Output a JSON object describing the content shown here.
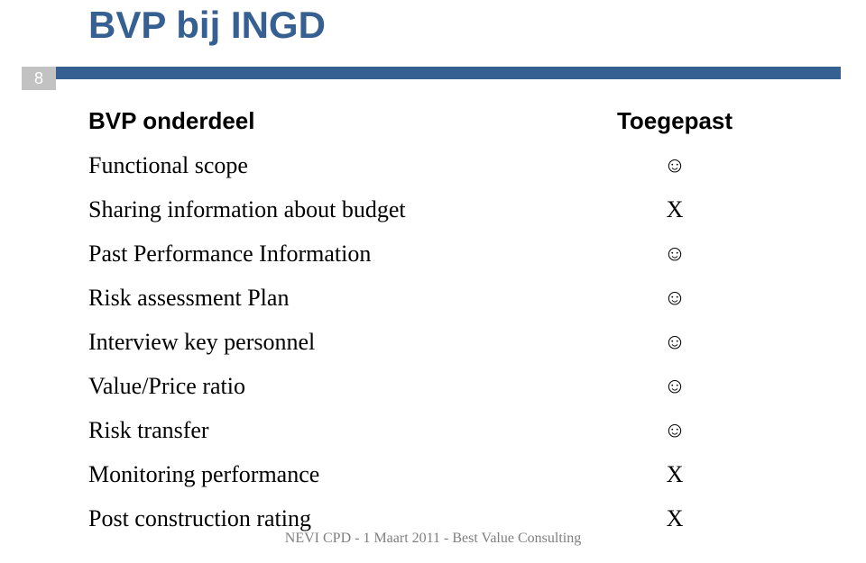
{
  "title": "BVP bij INGD",
  "page_number": "8",
  "colors": {
    "title": "#376092",
    "divider": "#376092",
    "pagebox_bg": "#c2c2c2",
    "pagebox_fg": "#ffffff",
    "text": "#000000",
    "footer": "#7f7f7f",
    "background": "#ffffff"
  },
  "table": {
    "header_left": "BVP onderdeel",
    "header_right": "Toegepast",
    "rows": [
      {
        "label": "Functional scope",
        "value": "☺"
      },
      {
        "label": "Sharing information about budget",
        "value": "X"
      },
      {
        "label": "Past Performance Information",
        "value": "☺"
      },
      {
        "label": "Risk assessment Plan",
        "value": "☺"
      },
      {
        "label": "Interview key personnel",
        "value": "☺"
      },
      {
        "label": "Value/Price ratio",
        "value": "☺"
      },
      {
        "label": "Risk transfer",
        "value": "☺"
      },
      {
        "label": "Monitoring performance",
        "value": "X"
      },
      {
        "label": "Post construction rating",
        "value": "X"
      }
    ]
  },
  "footer": "NEVI CPD - 1 Maart 2011 - Best Value Consulting"
}
